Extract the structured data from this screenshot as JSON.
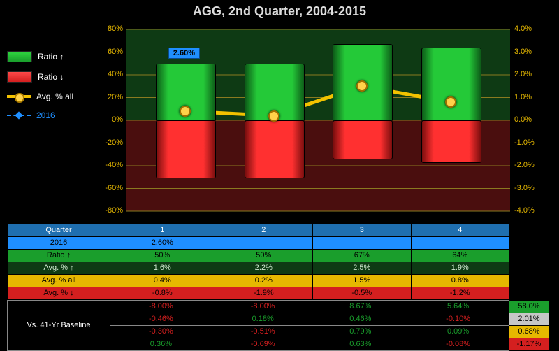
{
  "title": "AGG, 2nd Quarter, 2004-2015",
  "legend": {
    "ratio_up": {
      "label": "Ratio ↑",
      "color": "#1a9e2c",
      "border": "#0d5c18"
    },
    "ratio_down": {
      "label": "Ratio ↓",
      "color": "#d41f1f",
      "border": "#7a0e0e"
    },
    "avg_all": {
      "label": "Avg. % all",
      "color": "#f2c200"
    },
    "year2016": {
      "label": "2016",
      "color": "#1f8fff"
    }
  },
  "chart": {
    "bg_upper": "#0e3a14",
    "bg_lower": "#4a0e0e",
    "left_axis": {
      "min": -80,
      "max": 80,
      "step": 20,
      "fmt": "%",
      "color": "#e6b800"
    },
    "right_axis": {
      "min": -4.0,
      "max": 4.0,
      "step": 1.0,
      "fmt": "%",
      "color": "#e6b800"
    },
    "grid_color": "#8a7a20",
    "bars": [
      {
        "up": 50,
        "down": -50
      },
      {
        "up": 50,
        "down": -50
      },
      {
        "up": 67,
        "down": -33
      },
      {
        "up": 64,
        "down": -36
      }
    ],
    "avg_all_pct": [
      0.4,
      0.2,
      1.5,
      0.8
    ],
    "point2016": {
      "idx": 0,
      "value": 2.6,
      "label": "2.60%"
    },
    "bar_colors": {
      "up": "#1a9e2c",
      "up_grad": "#24c938",
      "down": "#d41f1f",
      "down_grad": "#ff3030"
    }
  },
  "rows": {
    "headers": [
      "Quarter",
      "2016",
      "Ratio ↑",
      "Avg. % ↑",
      "Avg. % all",
      "Avg. % ↓"
    ],
    "row_colors": {
      "quarter": {
        "bg": "#1f6fb0",
        "fg": "#fff"
      },
      "y2016": {
        "bg": "#1f8fff",
        "fg": "#000"
      },
      "ratio_up": {
        "bg": "#1a9e2c",
        "fg": "#000"
      },
      "avg_up": {
        "bg": "#0e3a14",
        "fg": "#cfe8cf"
      },
      "avg_all": {
        "bg": "#e6b800",
        "fg": "#000"
      },
      "avg_down": {
        "bg": "#d41f1f",
        "fg": "#000"
      }
    },
    "cols": [
      "1",
      "2",
      "3",
      "4"
    ],
    "y2016": [
      "2.60%",
      "",
      "",
      ""
    ],
    "ratio_up": [
      "50%",
      "50%",
      "67%",
      "64%"
    ],
    "avg_up": [
      "1.6%",
      "2.2%",
      "2.5%",
      "1.9%"
    ],
    "avg_all": [
      "0.4%",
      "0.2%",
      "1.5%",
      "0.8%"
    ],
    "avg_down": [
      "-0.8%",
      "-1.9%",
      "-0.5%",
      "-1.2%"
    ]
  },
  "baseline": {
    "label": "Vs. 41-Yr Baseline",
    "label_bg": "#000",
    "label_fg": "#fff",
    "cell_bg": "#000",
    "rows": [
      {
        "vals": [
          "-8.00%",
          "-8.00%",
          "8.67%",
          "5.64%"
        ],
        "colors": [
          "#d41f1f",
          "#d41f1f",
          "#1a9e2c",
          "#1a9e2c"
        ],
        "side": {
          "text": "58.0%",
          "bg": "#1a9e2c",
          "fg": "#000"
        }
      },
      {
        "vals": [
          "-0.46%",
          "0.18%",
          "0.46%",
          "-0.10%"
        ],
        "colors": [
          "#d41f1f",
          "#1a9e2c",
          "#1a9e2c",
          "#d41f1f"
        ],
        "side": {
          "text": "2.01%",
          "bg": "#c7c7c7",
          "fg": "#000"
        }
      },
      {
        "vals": [
          "-0.30%",
          "-0.51%",
          "0.79%",
          "0.09%"
        ],
        "colors": [
          "#d41f1f",
          "#d41f1f",
          "#1a9e2c",
          "#1a9e2c"
        ],
        "side": {
          "text": "0.68%",
          "bg": "#e6b800",
          "fg": "#000"
        }
      },
      {
        "vals": [
          "0.36%",
          "-0.69%",
          "0.63%",
          "-0.08%"
        ],
        "colors": [
          "#1a9e2c",
          "#d41f1f",
          "#1a9e2c",
          "#d41f1f"
        ],
        "side": {
          "text": "-1.17%",
          "bg": "#d41f1f",
          "fg": "#000"
        }
      }
    ]
  }
}
